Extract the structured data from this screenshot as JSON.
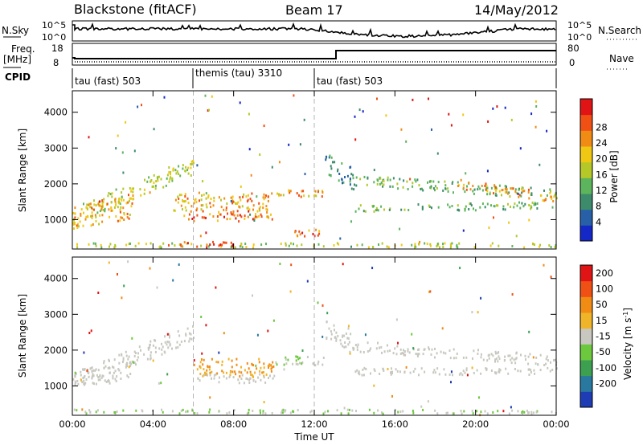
{
  "header": {
    "station": "Blackstone (fitACF)",
    "beam": "Beam 17",
    "date": "14/May/2012"
  },
  "panels": {
    "nsky_label": "N.Sky",
    "nsearch_label": "N.Search",
    "noise_ticks": [
      "10^5",
      "10^0"
    ],
    "freq_label_line1": "Freq.",
    "freq_label_line2": "[MHz]",
    "freq_ticks": [
      "18",
      "8"
    ],
    "nave_label": "Nave",
    "nave_ticks": [
      "80",
      "0"
    ],
    "cpid_label": "CPID",
    "cpid_segments": [
      {
        "label": "tau (fast) 503",
        "start_hour": 0
      },
      {
        "label": "themis (tau) 3310",
        "start_hour": 6
      },
      {
        "label": "tau (fast) 503",
        "start_hour": 12
      }
    ]
  },
  "colors": {
    "power": [
      "#1428c8",
      "#2860a8",
      "#3c8c6c",
      "#5cb45c",
      "#b4c828",
      "#f0c814",
      "#f08c14",
      "#f05014",
      "#e01414"
    ],
    "velocity": [
      "#1e3cb4",
      "#2878a0",
      "#3ca050",
      "#6cc83c",
      "#c8c8c0",
      "#f0b428",
      "#f08c14",
      "#f05014",
      "#e01414"
    ]
  },
  "chart_data": [
    {
      "type": "heatmap",
      "title": "Power",
      "ylabel": "Slant Range [km]",
      "xlabel": "",
      "x_unit": "hours UT",
      "xlim": [
        0,
        24
      ],
      "ylim": [
        180,
        4600
      ],
      "yticks": [
        "1000",
        "2000",
        "3000",
        "4000"
      ],
      "xticks": [
        "00:00",
        "04:00",
        "08:00",
        "12:00",
        "16:00",
        "20:00",
        "00:00"
      ],
      "colorbar": {
        "label": "Power [dB]",
        "ticks": [
          "4",
          "8",
          "12",
          "16",
          "20",
          "24",
          "28"
        ]
      },
      "regions": [
        {
          "x": [
            0,
            6
          ],
          "yc0": 1100,
          "yc1": 2500,
          "w": 500,
          "v": [
            3,
            5
          ]
        },
        {
          "x": [
            0,
            3
          ],
          "yc0": 1000,
          "yc1": 1400,
          "w": 700,
          "v": [
            4,
            7
          ]
        },
        {
          "x": [
            5,
            10
          ],
          "yc0": 1500,
          "yc1": 1500,
          "w": 500,
          "v": [
            4,
            7
          ]
        },
        {
          "x": [
            5.5,
            10
          ],
          "yc0": 1100,
          "yc1": 1100,
          "w": 300,
          "v": [
            5,
            8
          ]
        },
        {
          "x": [
            10,
            12.5
          ],
          "yc0": 1700,
          "yc1": 1700,
          "w": 250,
          "v": [
            4,
            7
          ]
        },
        {
          "x": [
            11,
            12.5
          ],
          "yc0": 650,
          "yc1": 650,
          "w": 250,
          "v": [
            5,
            8
          ]
        },
        {
          "x": [
            12.5,
            14
          ],
          "yc0": 2600,
          "yc1": 2100,
          "w": 600,
          "v": [
            1,
            3
          ]
        },
        {
          "x": [
            14,
            24
          ],
          "yc0": 2100,
          "yc1": 1700,
          "w": 300,
          "v": [
            2,
            4
          ]
        },
        {
          "x": [
            19,
            24
          ],
          "yc0": 2000,
          "yc1": 1600,
          "w": 250,
          "v": [
            5,
            7
          ]
        },
        {
          "x": [
            14,
            24
          ],
          "yc0": 1300,
          "yc1": 1400,
          "w": 200,
          "v": [
            2,
            4
          ]
        },
        {
          "x": [
            0,
            24
          ],
          "yc0": 280,
          "yc1": 280,
          "w": 120,
          "v": [
            3,
            5
          ]
        },
        {
          "x": [
            4.5,
            8
          ],
          "yc0": 300,
          "yc1": 300,
          "w": 150,
          "v": [
            6,
            8
          ]
        }
      ]
    },
    {
      "type": "heatmap",
      "title": "Velocity",
      "ylabel": "Slant Range [km]",
      "xlabel": "Time UT",
      "x_unit": "hours UT",
      "xlim": [
        0,
        24
      ],
      "ylim": [
        180,
        4600
      ],
      "yticks": [
        "1000",
        "2000",
        "3000",
        "4000"
      ],
      "xticks": [
        "00:00",
        "04:00",
        "08:00",
        "12:00",
        "16:00",
        "20:00",
        "00:00"
      ],
      "colorbar": {
        "label": "Velocity [m s",
        "label_sup": "-1",
        "label_close": "]",
        "ticks": [
          "200",
          "100",
          "50",
          "15",
          "-15",
          "-50",
          "-100",
          "-200"
        ]
      },
      "regions": [
        {
          "x": [
            0,
            6
          ],
          "yc0": 1100,
          "yc1": 2500,
          "w": 500,
          "v": [
            4,
            4
          ]
        },
        {
          "x": [
            0,
            3
          ],
          "yc0": 1200,
          "yc1": 1400,
          "w": 500,
          "v": [
            4,
            4
          ]
        },
        {
          "x": [
            6,
            10
          ],
          "yc0": 1500,
          "yc1": 1500,
          "w": 500,
          "v": [
            5,
            6
          ]
        },
        {
          "x": [
            6,
            10
          ],
          "yc0": 1200,
          "yc1": 1200,
          "w": 250,
          "v": [
            4,
            4
          ]
        },
        {
          "x": [
            10,
            12.5
          ],
          "yc0": 1700,
          "yc1": 1700,
          "w": 250,
          "v": [
            3,
            4
          ]
        },
        {
          "x": [
            12.5,
            14
          ],
          "yc0": 2600,
          "yc1": 2100,
          "w": 600,
          "v": [
            4,
            4
          ]
        },
        {
          "x": [
            14,
            24
          ],
          "yc0": 2100,
          "yc1": 1700,
          "w": 300,
          "v": [
            4,
            4
          ]
        },
        {
          "x": [
            14,
            24
          ],
          "yc0": 1400,
          "yc1": 1400,
          "w": 200,
          "v": [
            4,
            4
          ]
        },
        {
          "x": [
            0,
            24
          ],
          "yc0": 280,
          "yc1": 280,
          "w": 120,
          "v": [
            3,
            4
          ]
        }
      ]
    }
  ]
}
